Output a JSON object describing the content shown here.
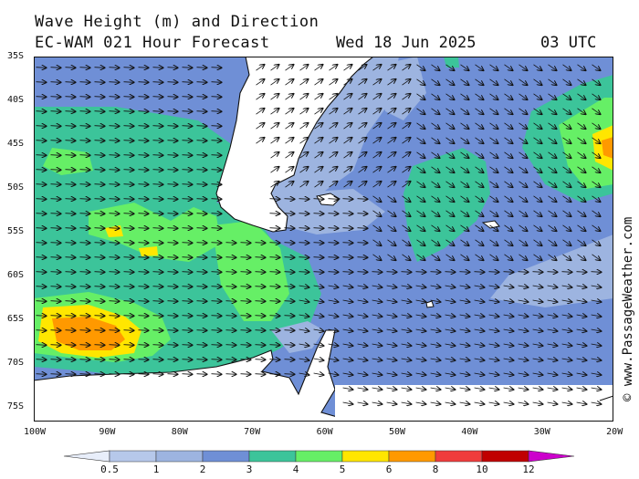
{
  "title_line1": "Wave Height (m) and Direction",
  "title_line2_left": "EC-WAM 021 Hour Forecast",
  "title_line2_date": "Wed 18 Jun 2025",
  "title_line2_time": "03 UTC",
  "credit": "© www.PassageWeather.com",
  "lat_labels": [
    "35S",
    "40S",
    "45S",
    "50S",
    "55S",
    "60S",
    "65S",
    "70S",
    "75S"
  ],
  "lon_labels": [
    "100W",
    "90W",
    "80W",
    "70W",
    "60W",
    "50W",
    "40W",
    "30W",
    "20W"
  ],
  "colorbar": {
    "labels": [
      "0.5",
      "1",
      "2",
      "3",
      "4",
      "5",
      "6",
      "8",
      "10",
      "12"
    ],
    "colors": [
      "#e8eefa",
      "#b6c8ea",
      "#9db4e0",
      "#6f8fd6",
      "#3cc49a",
      "#66ef66",
      "#ffe600",
      "#ff9900",
      "#f03c3c",
      "#c00000",
      "#cc00cc"
    ]
  }
}
